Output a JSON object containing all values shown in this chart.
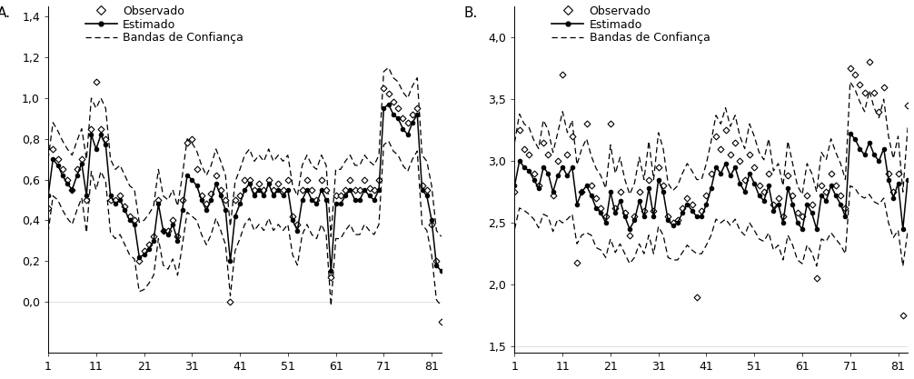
{
  "panel_A": {
    "label": "A.",
    "ylim": [
      -0.25,
      1.45
    ],
    "yticks": [
      0.0,
      0.2,
      0.4,
      0.6,
      0.8,
      1.0,
      1.2,
      1.4
    ],
    "xticks": [
      1,
      11,
      21,
      31,
      41,
      51,
      61,
      71,
      81
    ],
    "n": 83,
    "observed": [
      0.46,
      0.75,
      0.7,
      0.65,
      0.6,
      0.55,
      0.65,
      0.7,
      0.5,
      0.85,
      1.08,
      0.85,
      0.8,
      0.5,
      0.5,
      0.52,
      0.47,
      0.42,
      0.4,
      0.2,
      0.25,
      0.28,
      0.32,
      0.5,
      0.35,
      0.35,
      0.4,
      0.32,
      0.5,
      0.78,
      0.8,
      0.65,
      0.52,
      0.48,
      0.53,
      0.62,
      0.55,
      0.5,
      0.0,
      0.5,
      0.52,
      0.6,
      0.6,
      0.55,
      0.58,
      0.55,
      0.6,
      0.55,
      0.58,
      0.55,
      0.6,
      0.42,
      0.38,
      0.55,
      0.6,
      0.55,
      0.5,
      0.6,
      0.55,
      0.12,
      0.52,
      0.52,
      0.55,
      0.6,
      0.55,
      0.55,
      0.6,
      0.56,
      0.55,
      0.6,
      1.05,
      1.02,
      0.98,
      0.95,
      0.9,
      0.88,
      0.92,
      0.95,
      0.57,
      0.55,
      0.38,
      0.2,
      -0.1
    ],
    "estimated": [
      0.52,
      0.7,
      0.67,
      0.62,
      0.58,
      0.55,
      0.62,
      0.68,
      0.52,
      0.82,
      0.75,
      0.82,
      0.77,
      0.52,
      0.48,
      0.5,
      0.45,
      0.4,
      0.38,
      0.22,
      0.23,
      0.26,
      0.3,
      0.48,
      0.35,
      0.33,
      0.38,
      0.3,
      0.45,
      0.62,
      0.6,
      0.57,
      0.5,
      0.45,
      0.5,
      0.58,
      0.52,
      0.45,
      0.2,
      0.42,
      0.48,
      0.55,
      0.58,
      0.52,
      0.55,
      0.52,
      0.58,
      0.52,
      0.55,
      0.52,
      0.55,
      0.4,
      0.35,
      0.5,
      0.55,
      0.5,
      0.48,
      0.55,
      0.5,
      0.15,
      0.48,
      0.48,
      0.52,
      0.55,
      0.5,
      0.5,
      0.55,
      0.52,
      0.5,
      0.55,
      0.95,
      0.97,
      0.92,
      0.9,
      0.85,
      0.82,
      0.88,
      0.92,
      0.55,
      0.52,
      0.4,
      0.18,
      0.15
    ],
    "band_width": [
      0.18,
      0.18,
      0.17,
      0.17,
      0.17,
      0.17,
      0.17,
      0.17,
      0.18,
      0.18,
      0.2,
      0.18,
      0.18,
      0.18,
      0.17,
      0.17,
      0.17,
      0.17,
      0.17,
      0.17,
      0.17,
      0.17,
      0.17,
      0.17,
      0.17,
      0.17,
      0.17,
      0.17,
      0.17,
      0.18,
      0.18,
      0.17,
      0.17,
      0.17,
      0.17,
      0.17,
      0.17,
      0.17,
      0.17,
      0.17,
      0.17,
      0.17,
      0.17,
      0.17,
      0.17,
      0.17,
      0.17,
      0.17,
      0.17,
      0.17,
      0.17,
      0.17,
      0.17,
      0.17,
      0.17,
      0.17,
      0.17,
      0.17,
      0.17,
      0.17,
      0.17,
      0.17,
      0.17,
      0.17,
      0.17,
      0.17,
      0.17,
      0.17,
      0.17,
      0.17,
      0.18,
      0.18,
      0.18,
      0.18,
      0.18,
      0.18,
      0.18,
      0.18,
      0.17,
      0.17,
      0.17,
      0.17,
      0.17
    ]
  },
  "panel_B": {
    "label": "B.",
    "ylim": [
      1.45,
      4.25
    ],
    "yticks": [
      1.5,
      2.0,
      2.5,
      3.0,
      3.5,
      4.0
    ],
    "xticks": [
      1,
      11,
      21,
      31,
      41,
      51,
      61,
      71,
      81
    ],
    "n": 83,
    "observed": [
      2.75,
      3.25,
      3.1,
      3.05,
      2.9,
      2.8,
      3.15,
      3.05,
      2.72,
      3.0,
      3.7,
      3.05,
      3.2,
      2.18,
      2.75,
      3.3,
      2.8,
      2.7,
      2.62,
      2.55,
      3.3,
      2.62,
      2.75,
      2.58,
      2.4,
      2.55,
      2.75,
      2.6,
      2.85,
      2.6,
      2.95,
      2.8,
      2.55,
      2.5,
      2.52,
      2.62,
      2.7,
      2.65,
      1.9,
      2.6,
      2.72,
      2.9,
      3.2,
      3.1,
      3.25,
      3.05,
      3.15,
      3.0,
      2.85,
      3.05,
      2.95,
      2.8,
      2.75,
      2.9,
      2.65,
      2.7,
      2.55,
      2.88,
      2.72,
      2.58,
      2.55,
      2.72,
      2.65,
      2.05,
      2.8,
      2.75,
      2.9,
      2.8,
      2.72,
      2.62,
      3.75,
      3.7,
      3.62,
      3.55,
      3.8,
      3.55,
      3.4,
      3.6,
      2.9,
      2.75,
      2.9,
      1.75,
      3.45
    ],
    "estimated": [
      2.8,
      3.0,
      2.95,
      2.92,
      2.85,
      2.78,
      2.95,
      2.9,
      2.75,
      2.88,
      2.95,
      2.88,
      2.95,
      2.65,
      2.75,
      2.8,
      2.72,
      2.62,
      2.58,
      2.5,
      2.75,
      2.58,
      2.68,
      2.55,
      2.45,
      2.52,
      2.68,
      2.55,
      2.78,
      2.55,
      2.85,
      2.75,
      2.52,
      2.48,
      2.5,
      2.58,
      2.65,
      2.6,
      2.55,
      2.55,
      2.65,
      2.78,
      2.95,
      2.9,
      2.98,
      2.88,
      2.95,
      2.82,
      2.75,
      2.9,
      2.82,
      2.72,
      2.68,
      2.8,
      2.6,
      2.65,
      2.5,
      2.78,
      2.65,
      2.5,
      2.45,
      2.65,
      2.58,
      2.45,
      2.72,
      2.68,
      2.8,
      2.72,
      2.65,
      2.55,
      3.22,
      3.18,
      3.1,
      3.05,
      3.15,
      3.05,
      3.0,
      3.1,
      2.85,
      2.7,
      2.82,
      2.45,
      2.85
    ],
    "band_width": [
      0.35,
      0.38,
      0.35,
      0.35,
      0.32,
      0.32,
      0.38,
      0.35,
      0.32,
      0.35,
      0.45,
      0.35,
      0.38,
      0.32,
      0.35,
      0.38,
      0.32,
      0.32,
      0.3,
      0.28,
      0.38,
      0.32,
      0.35,
      0.3,
      0.28,
      0.3,
      0.35,
      0.3,
      0.38,
      0.3,
      0.38,
      0.35,
      0.3,
      0.28,
      0.3,
      0.32,
      0.33,
      0.32,
      0.3,
      0.3,
      0.33,
      0.38,
      0.42,
      0.4,
      0.45,
      0.4,
      0.42,
      0.38,
      0.35,
      0.4,
      0.38,
      0.35,
      0.33,
      0.38,
      0.32,
      0.33,
      0.3,
      0.38,
      0.33,
      0.3,
      0.28,
      0.33,
      0.32,
      0.3,
      0.35,
      0.33,
      0.38,
      0.35,
      0.33,
      0.3,
      0.42,
      0.4,
      0.38,
      0.35,
      0.42,
      0.38,
      0.35,
      0.4,
      0.35,
      0.32,
      0.38,
      0.3,
      0.42
    ]
  },
  "legend_labels": [
    "Observado",
    "Estimado",
    "Bandas de Confiança"
  ],
  "bg_color": "#ffffff",
  "tick_fontsize": 9,
  "label_fontsize": 11,
  "legend_fontsize": 9
}
